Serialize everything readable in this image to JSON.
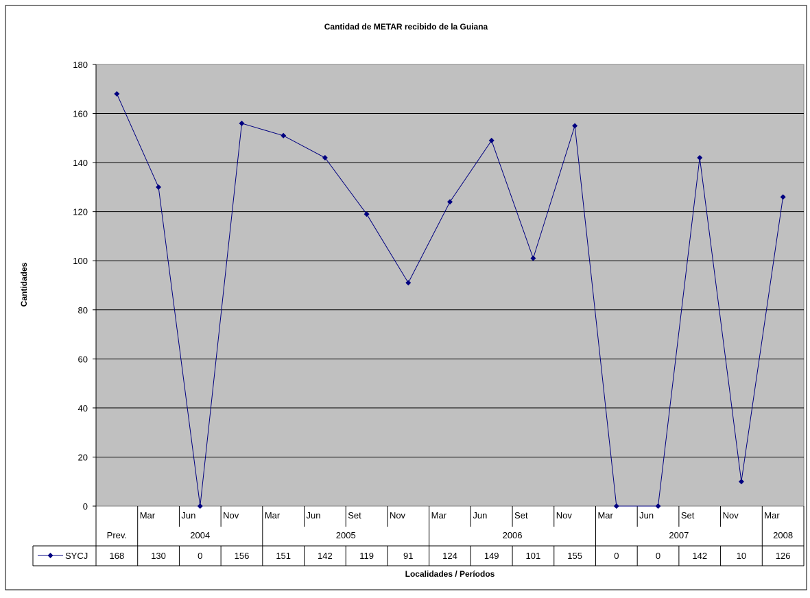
{
  "chart_data": {
    "type": "line",
    "title": "Cantidad de METAR recibido de la Guiana",
    "xlabel": "Localidades / Períodos",
    "ylabel": "Cantidades",
    "ylim": [
      0,
      180
    ],
    "yticks": [
      0,
      20,
      40,
      60,
      80,
      100,
      120,
      140,
      160,
      180
    ],
    "grid": true,
    "categories": [
      {
        "month": "",
        "group": "Prev."
      },
      {
        "month": "Mar",
        "group": "2004"
      },
      {
        "month": "Jun",
        "group": "2004"
      },
      {
        "month": "Nov",
        "group": "2004"
      },
      {
        "month": "Mar",
        "group": "2005"
      },
      {
        "month": "Jun",
        "group": "2005"
      },
      {
        "month": "Set",
        "group": "2005"
      },
      {
        "month": "Nov",
        "group": "2005"
      },
      {
        "month": "Mar",
        "group": "2006"
      },
      {
        "month": "Jun",
        "group": "2006"
      },
      {
        "month": "Set",
        "group": "2006"
      },
      {
        "month": "Nov",
        "group": "2006"
      },
      {
        "month": "Mar",
        "group": "2007"
      },
      {
        "month": "Jun",
        "group": "2007"
      },
      {
        "month": "Set",
        "group": "2007"
      },
      {
        "month": "Nov",
        "group": "2007"
      },
      {
        "month": "Mar",
        "group": "2008"
      }
    ],
    "series": [
      {
        "name": "SYCJ",
        "color": "#000080",
        "values": [
          168,
          130,
          0,
          156,
          151,
          142,
          119,
          91,
          124,
          149,
          101,
          155,
          0,
          0,
          142,
          10,
          126
        ]
      }
    ]
  }
}
